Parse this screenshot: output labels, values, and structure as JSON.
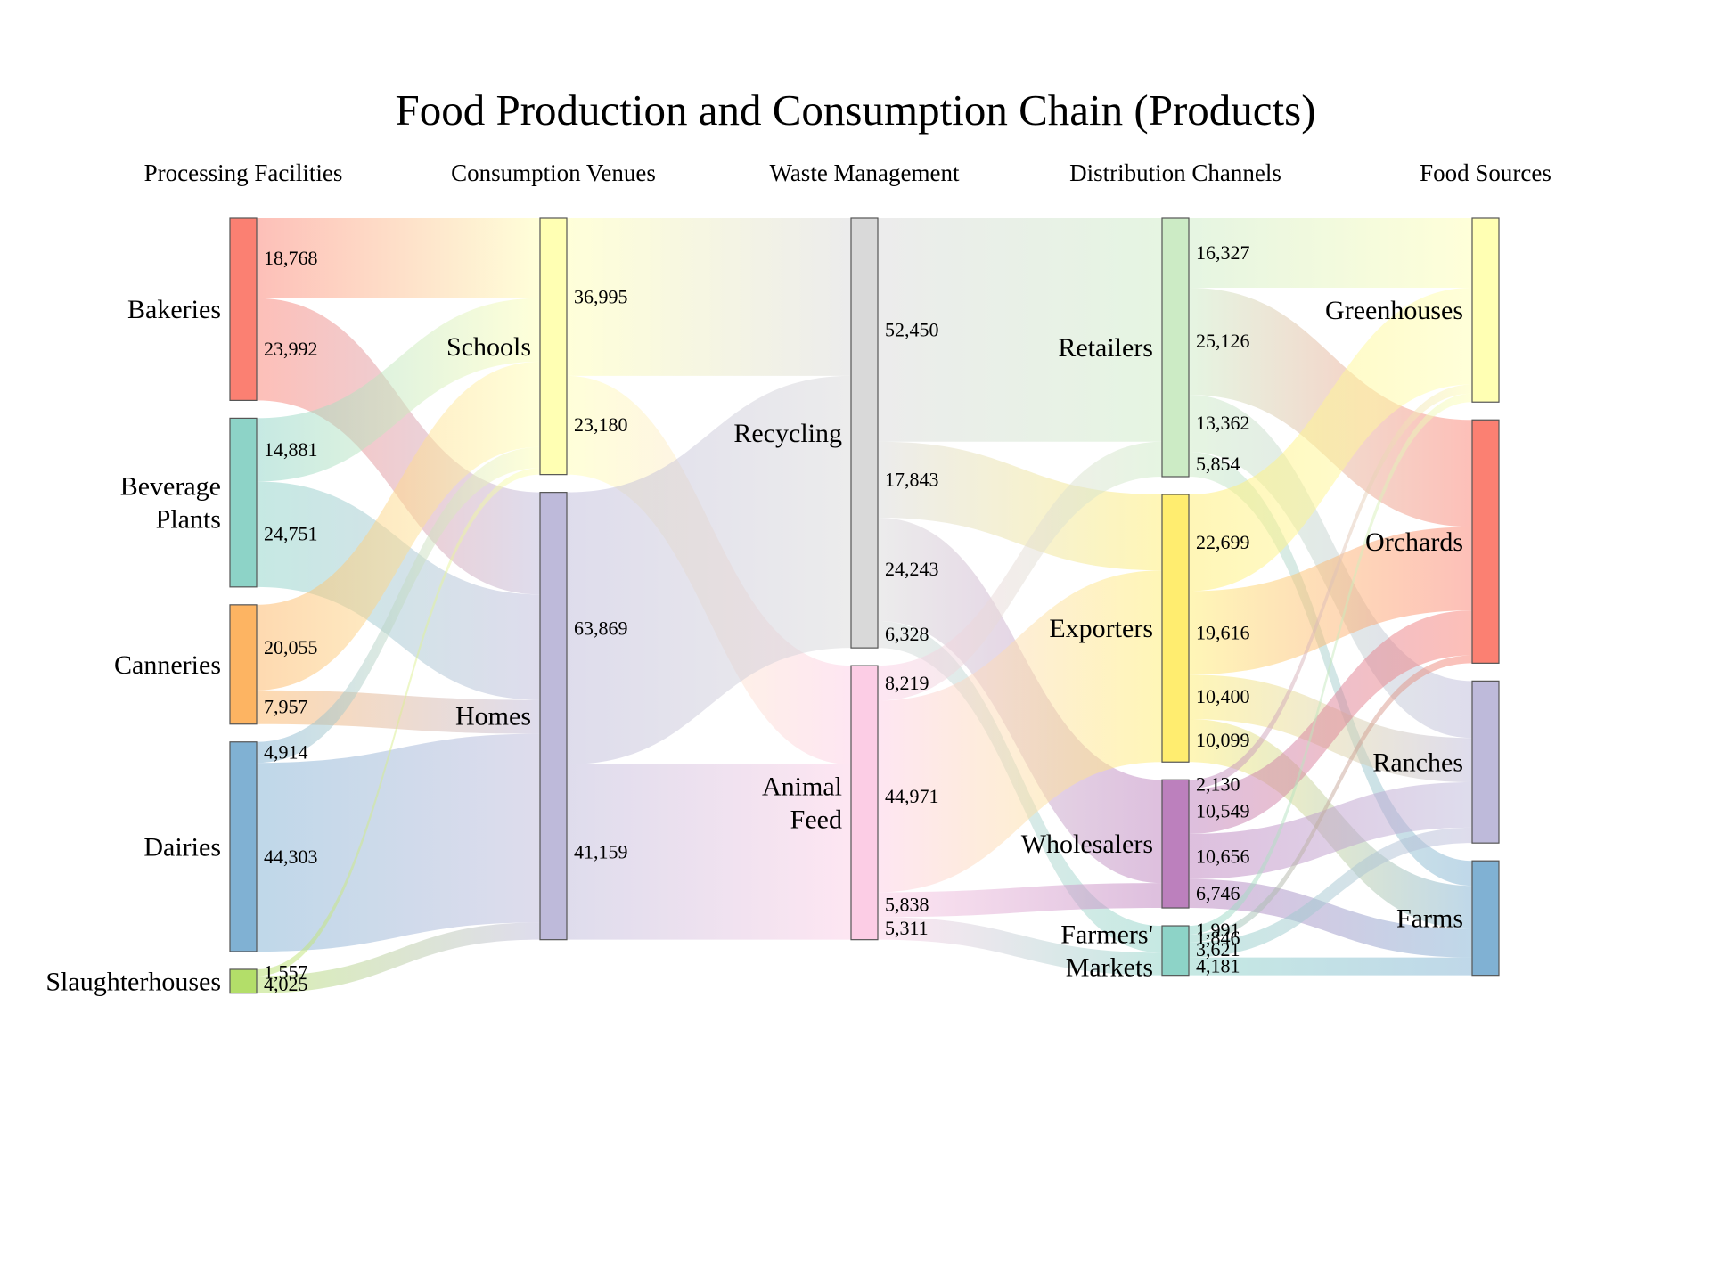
{
  "chart_data": {
    "type": "sankey",
    "title": "Food Production and Consumption Chain (Products)",
    "stages": [
      "Processing Facilities",
      "Consumption Venues",
      "Waste Management",
      "Distribution Channels",
      "Food Sources"
    ],
    "nodes": [
      {
        "id": "bakeries",
        "label": "Bakeries",
        "stage": 0,
        "color": "#fb8072"
      },
      {
        "id": "beverage",
        "label": "Beverage Plants",
        "stage": 0,
        "color": "#8dd3c7"
      },
      {
        "id": "canneries",
        "label": "Canneries",
        "stage": 0,
        "color": "#fdb462"
      },
      {
        "id": "dairies",
        "label": "Dairies",
        "stage": 0,
        "color": "#80b1d3"
      },
      {
        "id": "slaughter",
        "label": "Slaughterhouses",
        "stage": 0,
        "color": "#b3de69"
      },
      {
        "id": "schools",
        "label": "Schools",
        "stage": 1,
        "color": "#ffffb3"
      },
      {
        "id": "homes",
        "label": "Homes",
        "stage": 1,
        "color": "#bebada"
      },
      {
        "id": "recycling",
        "label": "Recycling",
        "stage": 2,
        "color": "#d9d9d9"
      },
      {
        "id": "feed",
        "label": "Animal Feed",
        "stage": 2,
        "color": "#fccde5"
      },
      {
        "id": "retailers",
        "label": "Retailers",
        "stage": 3,
        "color": "#ccebc5"
      },
      {
        "id": "exporters",
        "label": "Exporters",
        "stage": 3,
        "color": "#ffed6f"
      },
      {
        "id": "wholesalers",
        "label": "Wholesalers",
        "stage": 3,
        "color": "#bc80bd"
      },
      {
        "id": "markets",
        "label": "Farmers' Markets",
        "stage": 3,
        "color": "#8dd3c7"
      },
      {
        "id": "greenhouses",
        "label": "Greenhouses",
        "stage": 4,
        "color": "#ffffb3"
      },
      {
        "id": "orchards",
        "label": "Orchards",
        "stage": 4,
        "color": "#fb8072"
      },
      {
        "id": "ranches",
        "label": "Ranches",
        "stage": 4,
        "color": "#bebada"
      },
      {
        "id": "farms",
        "label": "Farms",
        "stage": 4,
        "color": "#80b1d3"
      }
    ],
    "links": [
      {
        "source": "bakeries",
        "target": "schools",
        "value": 18768,
        "label": "18,768"
      },
      {
        "source": "bakeries",
        "target": "homes",
        "value": 23992,
        "label": "23,992"
      },
      {
        "source": "beverage",
        "target": "schools",
        "value": 14881,
        "label": "14,881"
      },
      {
        "source": "beverage",
        "target": "homes",
        "value": 24751,
        "label": "24,751"
      },
      {
        "source": "canneries",
        "target": "schools",
        "value": 20055,
        "label": "20,055"
      },
      {
        "source": "canneries",
        "target": "homes",
        "value": 7957,
        "label": "7,957"
      },
      {
        "source": "dairies",
        "target": "schools",
        "value": 4914,
        "label": "4,914"
      },
      {
        "source": "dairies",
        "target": "homes",
        "value": 44303,
        "label": "44,303"
      },
      {
        "source": "slaughter",
        "target": "schools",
        "value": 1557,
        "label": "1,557"
      },
      {
        "source": "slaughter",
        "target": "homes",
        "value": 4025,
        "label": "4,025"
      },
      {
        "source": "schools",
        "target": "recycling",
        "value": 36995,
        "label": "36,995"
      },
      {
        "source": "schools",
        "target": "feed",
        "value": 23180,
        "label": "23,180"
      },
      {
        "source": "homes",
        "target": "recycling",
        "value": 63869,
        "label": "63,869"
      },
      {
        "source": "homes",
        "target": "feed",
        "value": 41159,
        "label": "41,159"
      },
      {
        "source": "recycling",
        "target": "retailers",
        "value": 52450,
        "label": "52,450"
      },
      {
        "source": "recycling",
        "target": "exporters",
        "value": 17843,
        "label": "17,843"
      },
      {
        "source": "recycling",
        "target": "wholesalers",
        "value": 24243,
        "label": "24,243"
      },
      {
        "source": "recycling",
        "target": "markets",
        "value": 6328,
        "label": "6,328"
      },
      {
        "source": "feed",
        "target": "retailers",
        "value": 8219,
        "label": "8,219"
      },
      {
        "source": "feed",
        "target": "exporters",
        "value": 44971,
        "label": "44,971"
      },
      {
        "source": "feed",
        "target": "wholesalers",
        "value": 5838,
        "label": "5,838"
      },
      {
        "source": "feed",
        "target": "markets",
        "value": 5311,
        "label": "5,311"
      },
      {
        "source": "retailers",
        "target": "greenhouses",
        "value": 16327,
        "label": "16,327"
      },
      {
        "source": "retailers",
        "target": "orchards",
        "value": 25126,
        "label": "25,126"
      },
      {
        "source": "retailers",
        "target": "ranches",
        "value": 13362,
        "label": "13,362"
      },
      {
        "source": "retailers",
        "target": "farms",
        "value": 5854,
        "label": "5,854"
      },
      {
        "source": "exporters",
        "target": "greenhouses",
        "value": 22699,
        "label": "22,699"
      },
      {
        "source": "exporters",
        "target": "orchards",
        "value": 19616,
        "label": "19,616"
      },
      {
        "source": "exporters",
        "target": "ranches",
        "value": 10400,
        "label": "10,400"
      },
      {
        "source": "exporters",
        "target": "farms",
        "value": 10099,
        "label": "10,099"
      },
      {
        "source": "wholesalers",
        "target": "greenhouses",
        "value": 2130,
        "label": "2,130"
      },
      {
        "source": "wholesalers",
        "target": "orchards",
        "value": 10549,
        "label": "10,549"
      },
      {
        "source": "wholesalers",
        "target": "ranches",
        "value": 10656,
        "label": "10,656"
      },
      {
        "source": "wholesalers",
        "target": "farms",
        "value": 6746,
        "label": "6,746"
      },
      {
        "source": "markets",
        "target": "greenhouses",
        "value": 1991,
        "label": "1,991"
      },
      {
        "source": "markets",
        "target": "orchards",
        "value": 1846,
        "label": "1,846"
      },
      {
        "source": "markets",
        "target": "ranches",
        "value": 3621,
        "label": "3,621"
      },
      {
        "source": "markets",
        "target": "farms",
        "value": 4181,
        "label": "4,181"
      }
    ]
  }
}
